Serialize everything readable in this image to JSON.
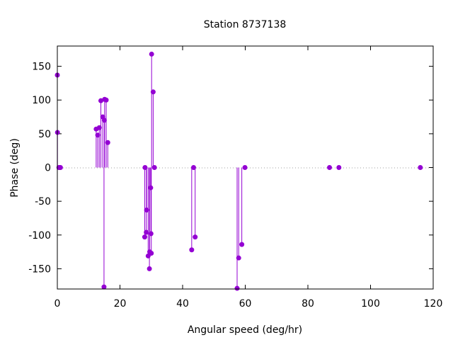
{
  "chart_data": {
    "type": "scatter",
    "title": "Station 8737138",
    "xlabel": "Angular speed (deg/hr)",
    "ylabel": "Phase (deg)",
    "xlim": [
      0,
      120
    ],
    "ylim": [
      -180,
      180
    ],
    "x_ticks": [
      0,
      20,
      40,
      60,
      80,
      100,
      120
    ],
    "y_ticks": [
      -150,
      -100,
      -50,
      0,
      50,
      100,
      150
    ],
    "x_tick_labels": [
      "0",
      "20",
      "40",
      "60",
      "80",
      "100",
      "120"
    ],
    "y_tick_labels": [
      "-150",
      "-100",
      "-50",
      "0",
      "50",
      "100",
      "150"
    ],
    "grid": false,
    "zero_line": "dotted",
    "marker_style": "impulse-with-dot",
    "color": "#9400d3",
    "series": [
      {
        "x": [
          0.0,
          0.04,
          0.5,
          0.8,
          1.0,
          12.4,
          12.9,
          13.4,
          13.9,
          14.5,
          14.9,
          15.0,
          15.1,
          15.6,
          16.1,
          27.9,
          28.0,
          28.4,
          28.5,
          29.0,
          29.4,
          29.5,
          29.8,
          29.9,
          30.0,
          30.1,
          30.6,
          31.0,
          42.9,
          43.5,
          44.0,
          57.4,
          57.9,
          58.9,
          59.9,
          86.9,
          89.9,
          115.9
        ],
        "y": [
          137,
          52,
          0,
          0,
          0,
          57,
          48,
          59,
          99,
          75,
          -177,
          70,
          101,
          100,
          37,
          -103,
          0,
          -96,
          -63,
          -131,
          -150,
          -125,
          -30,
          -98,
          -127,
          168,
          112,
          0,
          -122,
          0,
          -103,
          -179,
          -134,
          -114,
          0,
          0,
          0,
          0
        ]
      }
    ]
  }
}
